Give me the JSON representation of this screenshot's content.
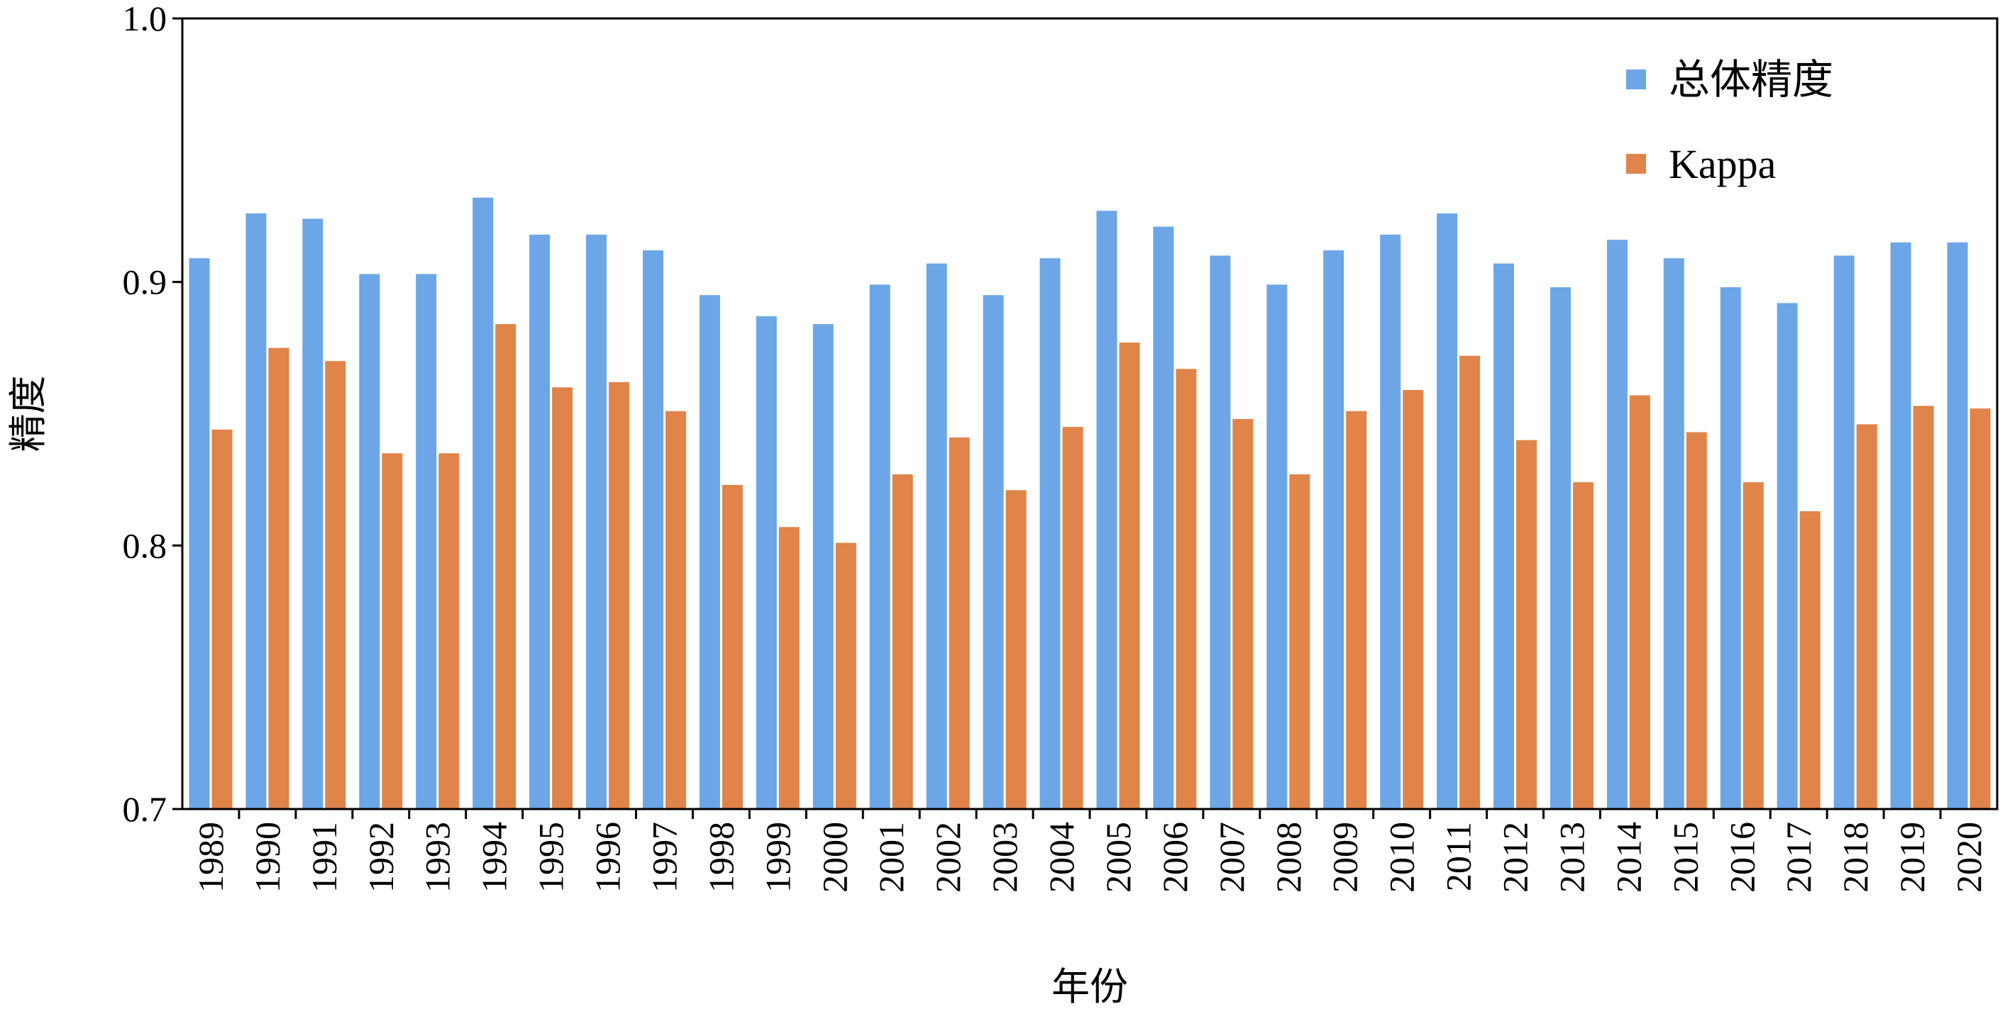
{
  "chart_data": {
    "type": "bar",
    "title": "",
    "xlabel": "年份",
    "ylabel": "精度",
    "ylim": [
      0.7,
      1.0
    ],
    "yticks": [
      "0.7",
      "0.8",
      "0.9",
      "1.0"
    ],
    "grid": false,
    "legend_position": "top-right",
    "categories": [
      "1989",
      "1990",
      "1991",
      "1992",
      "1993",
      "1994",
      "1995",
      "1996",
      "1997",
      "1998",
      "1999",
      "2000",
      "2001",
      "2002",
      "2003",
      "2004",
      "2005",
      "2006",
      "2007",
      "2008",
      "2009",
      "2010",
      "2011",
      "2012",
      "2013",
      "2014",
      "2015",
      "2016",
      "2017",
      "2018",
      "2019",
      "2020"
    ],
    "series": [
      {
        "name": "总体精度",
        "color": "#6CA6E6",
        "values": [
          0.909,
          0.926,
          0.924,
          0.903,
          0.903,
          0.932,
          0.918,
          0.918,
          0.912,
          0.895,
          0.887,
          0.884,
          0.899,
          0.907,
          0.895,
          0.909,
          0.927,
          0.921,
          0.91,
          0.899,
          0.912,
          0.918,
          0.926,
          0.907,
          0.898,
          0.916,
          0.909,
          0.898,
          0.892,
          0.91,
          0.915,
          0.915
        ]
      },
      {
        "name": "Kappa",
        "color": "#E0844A",
        "values": [
          0.844,
          0.875,
          0.87,
          0.835,
          0.835,
          0.884,
          0.86,
          0.862,
          0.851,
          0.823,
          0.807,
          0.801,
          0.827,
          0.841,
          0.821,
          0.845,
          0.877,
          0.867,
          0.848,
          0.827,
          0.851,
          0.859,
          0.872,
          0.84,
          0.824,
          0.857,
          0.843,
          0.824,
          0.813,
          0.846,
          0.853,
          0.852
        ]
      }
    ]
  }
}
